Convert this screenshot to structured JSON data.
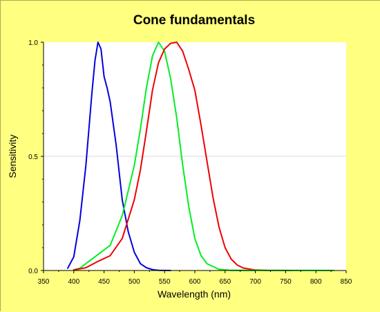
{
  "colors": {
    "background": "#ffff80",
    "plot_background": "#ffffff",
    "gridline": "#d8d8d8",
    "axis": "#000000"
  },
  "chart_data": {
    "type": "line",
    "title": "Cone fundamentals",
    "xlabel": "Wavelength (nm)",
    "ylabel": "Sensitivity",
    "xlim": [
      350,
      850
    ],
    "ylim": [
      0,
      1
    ],
    "x_ticks": [
      350,
      400,
      450,
      500,
      550,
      600,
      650,
      700,
      750,
      800,
      850
    ],
    "y_ticks": [
      0.0,
      0.5,
      1.0
    ],
    "y_tick_labels": [
      "0.0",
      "0.5",
      "1.0"
    ],
    "grid": "horizontal",
    "legend": "none",
    "series": [
      {
        "color": "#0000dd",
        "points": [
          [
            390,
            0.01
          ],
          [
            400,
            0.06
          ],
          [
            410,
            0.22
          ],
          [
            420,
            0.46
          ],
          [
            430,
            0.78
          ],
          [
            435,
            0.92
          ],
          [
            440,
            1.0
          ],
          [
            445,
            0.97
          ],
          [
            450,
            0.85
          ],
          [
            455,
            0.8
          ],
          [
            460,
            0.74
          ],
          [
            470,
            0.55
          ],
          [
            480,
            0.31
          ],
          [
            490,
            0.17
          ],
          [
            500,
            0.08
          ],
          [
            510,
            0.03
          ],
          [
            520,
            0.012
          ],
          [
            530,
            0.004
          ],
          [
            540,
            0.001
          ],
          [
            560,
            0
          ]
        ]
      },
      {
        "color": "#00ee22",
        "points": [
          [
            400,
            0.003
          ],
          [
            410,
            0.01
          ],
          [
            420,
            0.03
          ],
          [
            440,
            0.07
          ],
          [
            460,
            0.11
          ],
          [
            480,
            0.24
          ],
          [
            500,
            0.46
          ],
          [
            510,
            0.62
          ],
          [
            520,
            0.8
          ],
          [
            530,
            0.94
          ],
          [
            540,
            1.0
          ],
          [
            550,
            0.96
          ],
          [
            560,
            0.84
          ],
          [
            570,
            0.67
          ],
          [
            580,
            0.46
          ],
          [
            590,
            0.28
          ],
          [
            600,
            0.14
          ],
          [
            610,
            0.066
          ],
          [
            620,
            0.03
          ],
          [
            640,
            0.005
          ],
          [
            660,
            0.001
          ],
          [
            700,
            0
          ]
        ]
      },
      {
        "color": "#ee0000",
        "points": [
          [
            400,
            0.002
          ],
          [
            420,
            0.012
          ],
          [
            440,
            0.04
          ],
          [
            460,
            0.065
          ],
          [
            480,
            0.14
          ],
          [
            500,
            0.31
          ],
          [
            510,
            0.44
          ],
          [
            520,
            0.61
          ],
          [
            530,
            0.79
          ],
          [
            540,
            0.91
          ],
          [
            550,
            0.97
          ],
          [
            560,
            0.995
          ],
          [
            570,
            1.0
          ],
          [
            575,
            0.98
          ],
          [
            580,
            0.96
          ],
          [
            590,
            0.88
          ],
          [
            600,
            0.79
          ],
          [
            610,
            0.64
          ],
          [
            620,
            0.48
          ],
          [
            630,
            0.32
          ],
          [
            640,
            0.19
          ],
          [
            650,
            0.1
          ],
          [
            660,
            0.05
          ],
          [
            670,
            0.024
          ],
          [
            680,
            0.011
          ],
          [
            700,
            0.002
          ],
          [
            720,
            0.0005
          ],
          [
            760,
            0
          ]
        ]
      },
      {
        "color": "#00ee22",
        "points": [
          [
            660,
            0.001
          ],
          [
            700,
            0.0005
          ],
          [
            750,
            0.0003
          ],
          [
            800,
            0.0002
          ],
          [
            830,
            0.0001
          ]
        ]
      }
    ]
  }
}
